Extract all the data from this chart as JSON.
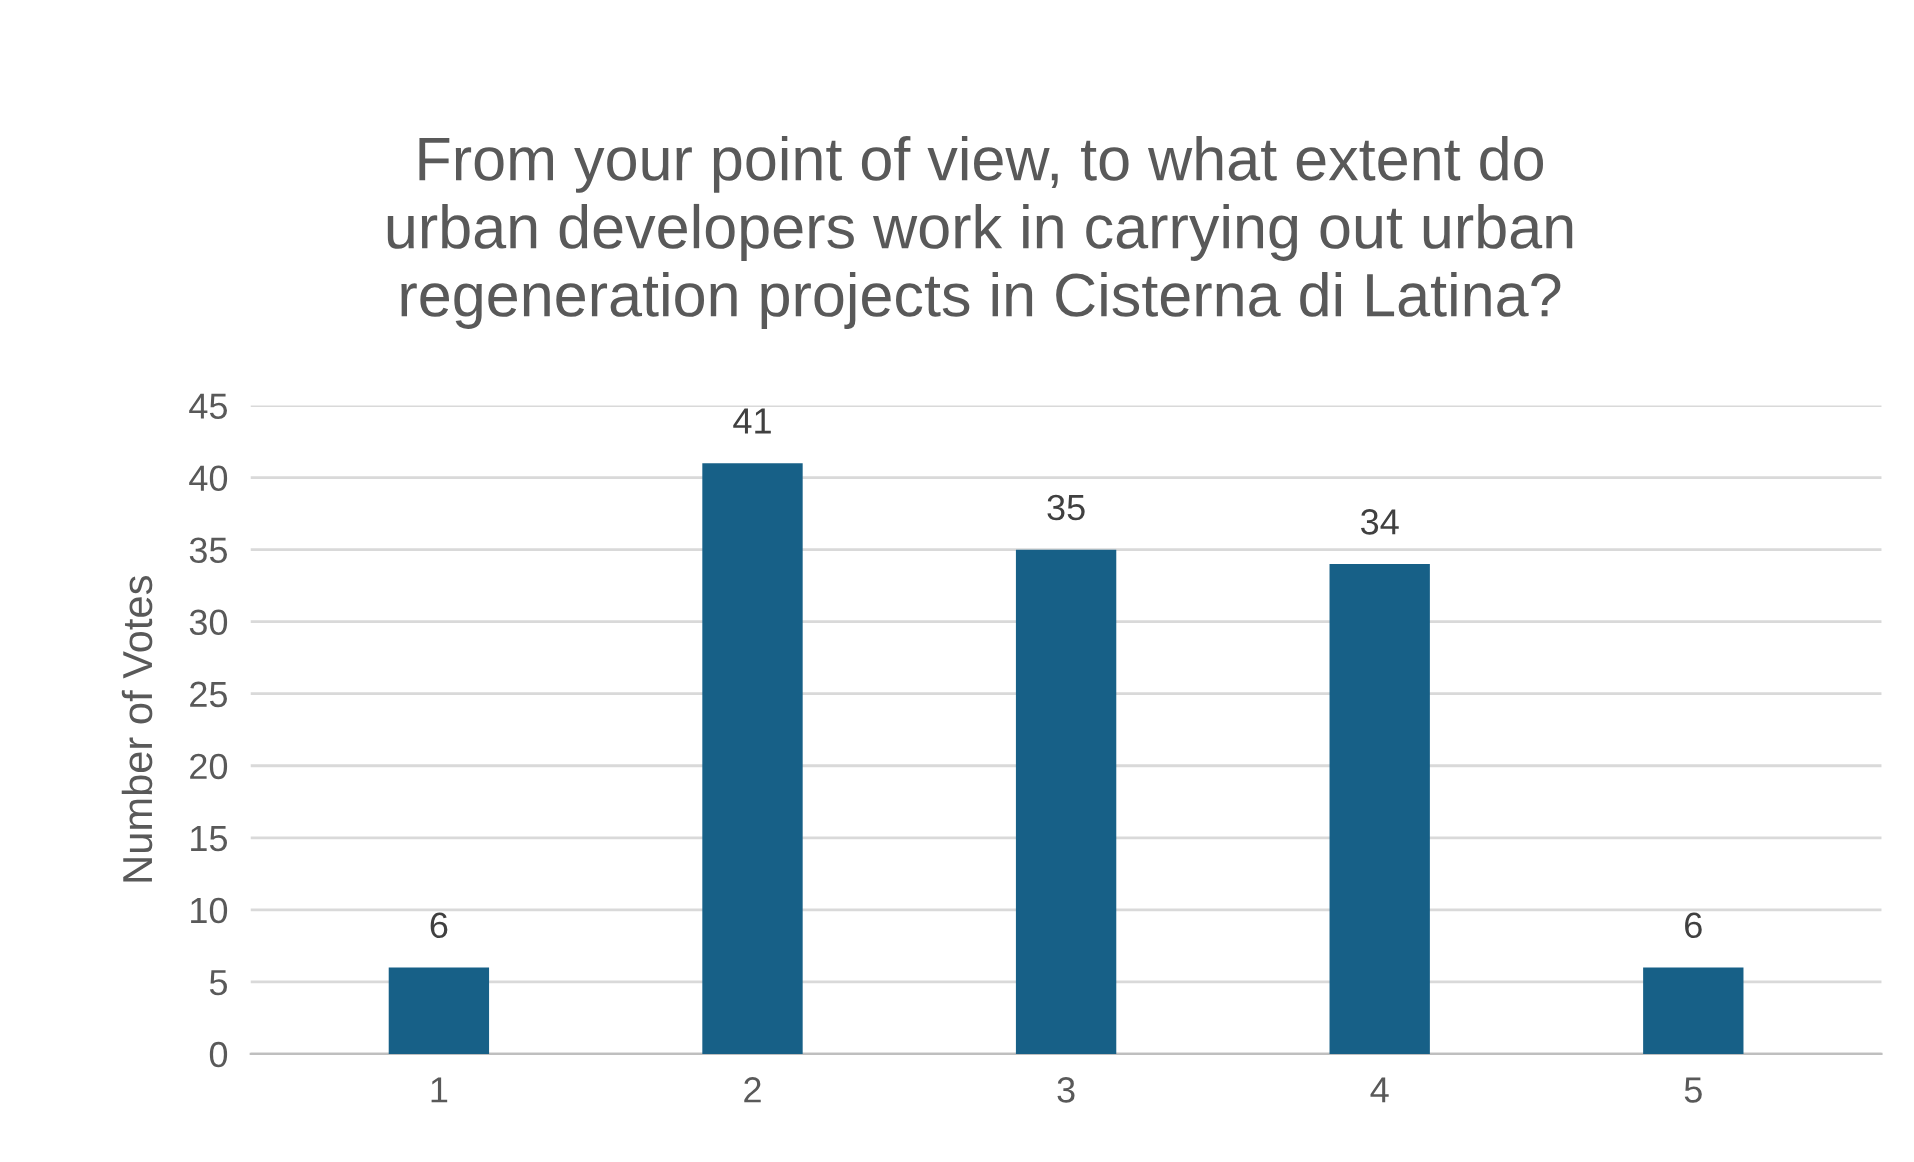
{
  "chart_data": {
    "type": "bar",
    "title": "From your point of view, to what extent do\nurban developers work in carrying out urban\nregeneration projects in Cisterna di Latina?",
    "ylabel": "Number of Votes",
    "categories": [
      "1",
      "2",
      "3",
      "4",
      "5"
    ],
    "values": [
      6,
      41,
      35,
      34,
      6
    ],
    "color": "#176087",
    "ylim": [
      0,
      45
    ],
    "yticks": [
      0,
      5,
      10,
      15,
      20,
      25,
      30,
      35,
      40,
      45
    ],
    "grid": "y",
    "data_labels": true,
    "legend": false
  }
}
